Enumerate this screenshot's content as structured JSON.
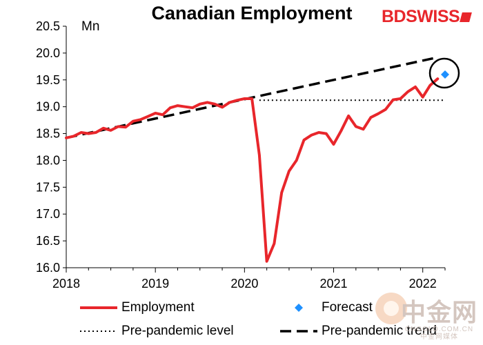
{
  "header": {
    "title": "Canadian Employment",
    "unit": "Mn"
  },
  "brand": {
    "logo_text_bd": "BD",
    "logo_text_swiss": "SWISS"
  },
  "watermark": {
    "cn": "中金网",
    "url": "CNGOLD.COM.CN",
    "tag": "中金网媒体"
  },
  "legend": {
    "employment": "Employment",
    "forecast": "Forecast",
    "pre_level": "Pre-pandemic level",
    "pre_trend": "Pre-pandemic trend"
  },
  "colors": {
    "employment": "#e8262b",
    "forecast": "#1e90ff",
    "trend": "#000000",
    "axis": "#000000"
  },
  "chart_data": {
    "type": "line",
    "title": "Canadian Employment",
    "ylabel": "Mn",
    "xlim": [
      2018.0,
      2022.25
    ],
    "ylim": [
      16.0,
      20.5
    ],
    "yticks": [
      16.0,
      16.5,
      17.0,
      17.5,
      18.0,
      18.5,
      19.0,
      19.5,
      20.0,
      20.5
    ],
    "ytick_labels": [
      "16.0",
      "16.5",
      "17.0",
      "17.5",
      "18.0",
      "18.5",
      "19.0",
      "19.5",
      "20.0",
      "20.5"
    ],
    "xticks": [
      2018,
      2019,
      2020,
      2021,
      2022
    ],
    "xtick_labels": [
      "2018",
      "2019",
      "2020",
      "2021",
      "2022"
    ],
    "series": [
      {
        "name": "Employment",
        "style": "solid",
        "x": [
          2018.0,
          2018.083,
          2018.167,
          2018.25,
          2018.333,
          2018.417,
          2018.5,
          2018.583,
          2018.667,
          2018.75,
          2018.833,
          2018.917,
          2019.0,
          2019.083,
          2019.167,
          2019.25,
          2019.333,
          2019.417,
          2019.5,
          2019.583,
          2019.667,
          2019.75,
          2019.833,
          2019.917,
          2020.0,
          2020.083,
          2020.167,
          2020.25,
          2020.333,
          2020.417,
          2020.5,
          2020.583,
          2020.667,
          2020.75,
          2020.833,
          2020.917,
          2021.0,
          2021.083,
          2021.167,
          2021.25,
          2021.333,
          2021.417,
          2021.5,
          2021.583,
          2021.667,
          2021.75,
          2021.833,
          2021.917,
          2022.0,
          2022.083,
          2022.167
        ],
        "values": [
          18.42,
          18.45,
          18.52,
          18.5,
          18.52,
          18.6,
          18.56,
          18.63,
          18.62,
          18.73,
          18.76,
          18.82,
          18.88,
          18.85,
          18.98,
          19.02,
          19.0,
          18.98,
          19.05,
          19.08,
          19.05,
          18.99,
          19.08,
          19.12,
          19.15,
          19.15,
          18.1,
          16.12,
          16.45,
          17.4,
          17.8,
          18.0,
          18.38,
          18.47,
          18.52,
          18.5,
          18.3,
          18.55,
          18.83,
          18.63,
          18.58,
          18.8,
          18.87,
          18.95,
          19.13,
          19.15,
          19.28,
          19.37,
          19.18,
          19.4,
          19.52
        ]
      },
      {
        "name": "Pre-pandemic trend",
        "style": "dashed",
        "x": [
          2018.0,
          2022.167
        ],
        "values": [
          18.42,
          19.92
        ]
      },
      {
        "name": "Pre-pandemic level",
        "style": "dotted",
        "x": [
          2020.167,
          2022.25
        ],
        "values": [
          19.12,
          19.12
        ]
      },
      {
        "name": "Forecast",
        "style": "marker",
        "x": [
          2022.25
        ],
        "values": [
          19.6
        ]
      }
    ],
    "annotations": [
      {
        "type": "circle",
        "target": "Forecast"
      }
    ]
  }
}
